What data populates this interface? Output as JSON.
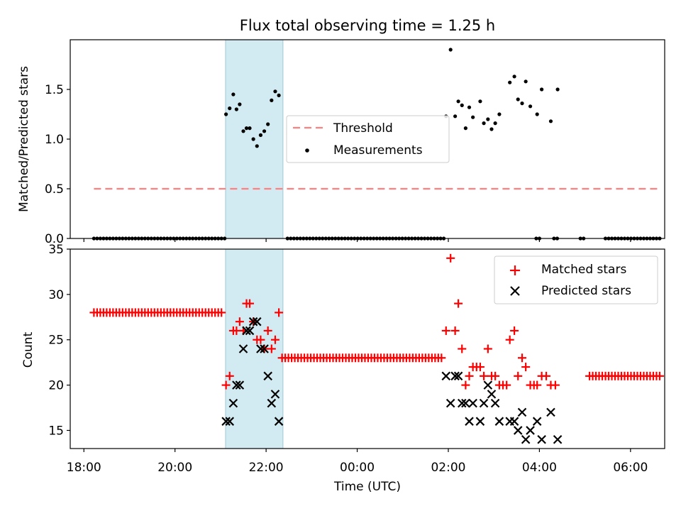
{
  "chart_data": [
    {
      "type": "scatter",
      "title": "Flux total observing time = 1.25 h",
      "xlabel": "",
      "ylabel": "Matched/Predicted stars",
      "xlim": [
        17.7,
        30.75
      ],
      "ylim": [
        0,
        2.0
      ],
      "yticks": [
        0.0,
        0.5,
        1.0,
        1.5
      ],
      "ytick_labels": [
        "0.0",
        "0.5",
        "1.0",
        "1.5"
      ],
      "xticks": [
        18,
        20,
        22,
        24,
        26,
        28,
        30
      ],
      "shaded_span": [
        21.11,
        22.37
      ],
      "threshold": {
        "name": "Threshold",
        "value": 0.5,
        "x_range": [
          18.22,
          30.67
        ],
        "color": "#ff8080"
      },
      "legend": {
        "position": "center",
        "entries": [
          "Threshold",
          "Measurements"
        ]
      },
      "series": [
        {
          "name": "Measurements",
          "color": "#000000",
          "zero_ranges": [
            [
              18.22,
              21.1,
              0.07
            ],
            [
              22.47,
              25.9,
              0.07
            ],
            [
              27.93,
              28.0,
              0.07
            ],
            [
              28.32,
              28.42,
              0.07
            ],
            [
              28.9,
              29.0,
              0.07
            ],
            [
              29.45,
              30.67,
              0.07
            ]
          ],
          "points": [
            [
              21.12,
              1.25
            ],
            [
              21.2,
              1.31
            ],
            [
              21.28,
              1.45
            ],
            [
              21.35,
              1.3
            ],
            [
              21.42,
              1.35
            ],
            [
              21.5,
              1.08
            ],
            [
              21.57,
              1.11
            ],
            [
              21.64,
              1.11
            ],
            [
              21.72,
              1.0
            ],
            [
              21.8,
              0.93
            ],
            [
              21.88,
              1.04
            ],
            [
              21.96,
              1.08
            ],
            [
              22.04,
              1.15
            ],
            [
              22.12,
              1.39
            ],
            [
              22.2,
              1.48
            ],
            [
              22.28,
              1.44
            ],
            [
              25.95,
              1.23
            ],
            [
              26.05,
              1.9
            ],
            [
              26.15,
              1.23
            ],
            [
              26.22,
              1.38
            ],
            [
              26.3,
              1.34
            ],
            [
              26.38,
              1.11
            ],
            [
              26.46,
              1.32
            ],
            [
              26.54,
              1.22
            ],
            [
              26.7,
              1.38
            ],
            [
              26.78,
              1.16
            ],
            [
              26.87,
              1.2
            ],
            [
              26.95,
              1.1
            ],
            [
              27.03,
              1.16
            ],
            [
              27.12,
              1.25
            ],
            [
              27.35,
              1.57
            ],
            [
              27.45,
              1.63
            ],
            [
              27.53,
              1.4
            ],
            [
              27.62,
              1.36
            ],
            [
              27.7,
              1.58
            ],
            [
              27.8,
              1.33
            ],
            [
              27.95,
              1.25
            ],
            [
              28.05,
              1.5
            ],
            [
              28.25,
              1.18
            ],
            [
              28.4,
              1.5
            ]
          ]
        }
      ]
    },
    {
      "type": "scatter",
      "title": "",
      "xlabel": "Time (UTC)",
      "ylabel": "Count",
      "xlim": [
        17.7,
        30.75
      ],
      "ylim": [
        13,
        35
      ],
      "yticks": [
        15,
        20,
        25,
        30,
        35
      ],
      "ytick_labels": [
        "15",
        "20",
        "25",
        "30",
        "35"
      ],
      "xticks": [
        18,
        20,
        22,
        24,
        26,
        28,
        30
      ],
      "xtick_labels": [
        "18:00",
        "20:00",
        "22:00",
        "00:00",
        "02:00",
        "04:00",
        "06:00"
      ],
      "shaded_span": [
        21.11,
        22.37
      ],
      "legend": {
        "position": "upper right",
        "entries": [
          "Matched stars",
          "Predicted stars"
        ]
      },
      "series": [
        {
          "name": "Matched stars",
          "marker": "plus",
          "color": "#ff0000",
          "constant_runs": [
            [
              18.22,
              21.07,
              28,
              0.07
            ],
            [
              22.35,
              25.85,
              23,
              0.07
            ],
            [
              29.1,
              30.67,
              21,
              0.07
            ]
          ],
          "points": [
            [
              21.12,
              20
            ],
            [
              21.2,
              21
            ],
            [
              21.28,
              26
            ],
            [
              21.35,
              26
            ],
            [
              21.42,
              27
            ],
            [
              21.5,
              26
            ],
            [
              21.57,
              29
            ],
            [
              21.64,
              29
            ],
            [
              21.72,
              27
            ],
            [
              21.8,
              25
            ],
            [
              21.88,
              25
            ],
            [
              21.96,
              24
            ],
            [
              22.04,
              26
            ],
            [
              22.12,
              24
            ],
            [
              22.2,
              25
            ],
            [
              22.28,
              28
            ],
            [
              25.95,
              26
            ],
            [
              26.05,
              34
            ],
            [
              26.15,
              26
            ],
            [
              26.22,
              29
            ],
            [
              26.3,
              24
            ],
            [
              26.38,
              20
            ],
            [
              26.46,
              21
            ],
            [
              26.54,
              22
            ],
            [
              26.62,
              22
            ],
            [
              26.7,
              22
            ],
            [
              26.78,
              21
            ],
            [
              26.87,
              24
            ],
            [
              26.95,
              21
            ],
            [
              27.03,
              21
            ],
            [
              27.12,
              20
            ],
            [
              27.2,
              20
            ],
            [
              27.28,
              20
            ],
            [
              27.35,
              25
            ],
            [
              27.45,
              26
            ],
            [
              27.53,
              21
            ],
            [
              27.62,
              23
            ],
            [
              27.7,
              22
            ],
            [
              27.8,
              20
            ],
            [
              27.88,
              20
            ],
            [
              27.95,
              20
            ],
            [
              28.05,
              21
            ],
            [
              28.15,
              21
            ],
            [
              28.25,
              20
            ],
            [
              28.35,
              20
            ]
          ]
        },
        {
          "name": "Predicted stars",
          "marker": "x",
          "color": "#000000",
          "points": [
            [
              21.12,
              16
            ],
            [
              21.2,
              16
            ],
            [
              21.28,
              18
            ],
            [
              21.35,
              20
            ],
            [
              21.42,
              20
            ],
            [
              21.5,
              24
            ],
            [
              21.57,
              26
            ],
            [
              21.64,
              26
            ],
            [
              21.72,
              27
            ],
            [
              21.8,
              27
            ],
            [
              21.88,
              24
            ],
            [
              21.96,
              24
            ],
            [
              22.04,
              21
            ],
            [
              22.12,
              18
            ],
            [
              22.2,
              19
            ],
            [
              22.28,
              16
            ],
            [
              25.95,
              21
            ],
            [
              26.05,
              18
            ],
            [
              26.15,
              21
            ],
            [
              26.22,
              21
            ],
            [
              26.3,
              18
            ],
            [
              26.38,
              18
            ],
            [
              26.46,
              16
            ],
            [
              26.54,
              18
            ],
            [
              26.7,
              16
            ],
            [
              26.78,
              18
            ],
            [
              26.87,
              20
            ],
            [
              26.95,
              19
            ],
            [
              27.03,
              18
            ],
            [
              27.12,
              16
            ],
            [
              27.35,
              16
            ],
            [
              27.45,
              16
            ],
            [
              27.53,
              15
            ],
            [
              27.62,
              17
            ],
            [
              27.7,
              14
            ],
            [
              27.8,
              15
            ],
            [
              27.95,
              16
            ],
            [
              28.05,
              14
            ],
            [
              28.25,
              17
            ],
            [
              28.4,
              14
            ]
          ]
        }
      ]
    }
  ]
}
